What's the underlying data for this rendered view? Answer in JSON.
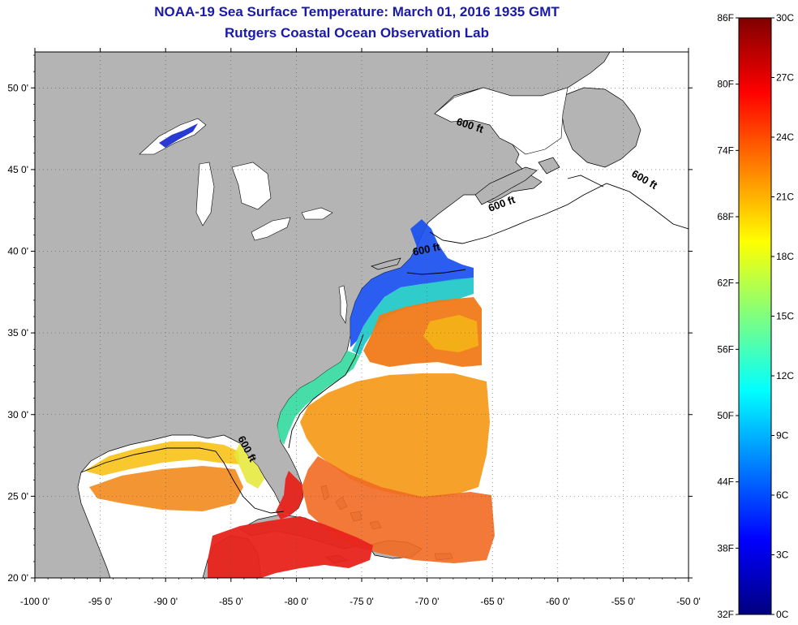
{
  "title_line1": "NOAA-19 Sea Surface Temperature:  March 01, 2016 1935 GMT",
  "title_line2": "Rutgers Coastal Ocean Observation Lab",
  "map": {
    "lon_range": [
      -100,
      -50
    ],
    "lat_range": [
      20,
      52.2
    ],
    "lon_ticks": [
      {
        "value": -100,
        "label": "-100 0'"
      },
      {
        "value": -95,
        "label": "-95 0'"
      },
      {
        "value": -90,
        "label": "-90 0'"
      },
      {
        "value": -85,
        "label": "-85 0'"
      },
      {
        "value": -80,
        "label": "-80 0'"
      },
      {
        "value": -75,
        "label": "-75 0'"
      },
      {
        "value": -70,
        "label": "-70 0'"
      },
      {
        "value": -65,
        "label": "-65 0'"
      },
      {
        "value": -60,
        "label": "-60 0'"
      },
      {
        "value": -55,
        "label": "-55 0'"
      },
      {
        "value": -50,
        "label": "-50 0'"
      }
    ],
    "lat_ticks": [
      {
        "value": 50,
        "label": "50 0'"
      },
      {
        "value": 45,
        "label": "45 0'"
      },
      {
        "value": 40,
        "label": "40 0'"
      },
      {
        "value": 35,
        "label": "35 0'"
      },
      {
        "value": 30,
        "label": "30 0'"
      },
      {
        "value": 25,
        "label": "25 0'"
      },
      {
        "value": 20,
        "label": "20 0'"
      }
    ],
    "grid": "dotted",
    "land_color": "#b4b4b4",
    "lake_color": "#ffffff",
    "depth_contour_labels": [
      {
        "text": "600 ft",
        "lon": -66.8,
        "lat": 47.5,
        "angle": 18
      },
      {
        "text": "600 ft",
        "lon": -53.5,
        "lat": 44.2,
        "angle": 30
      },
      {
        "text": "600 ft",
        "lon": -64.2,
        "lat": 42.7,
        "angle": -20
      },
      {
        "text": "600 ft",
        "lon": -70.0,
        "lat": 39.9,
        "angle": -12
      },
      {
        "text": "600 ft",
        "lon": -84.0,
        "lat": 27.8,
        "angle": 62
      }
    ]
  },
  "colorbar": {
    "f_labels": [
      "86F",
      "80F",
      "74F",
      "68F",
      "62F",
      "56F",
      "50F",
      "44F",
      "38F",
      "32F"
    ],
    "c_labels": [
      "30C",
      "27C",
      "24C",
      "21C",
      "18C",
      "15C",
      "12C",
      "9C",
      "6C",
      "3C",
      "0C"
    ],
    "range_c": [
      0,
      30
    ],
    "colors": [
      "#00007f",
      "#0000ff",
      "#007fff",
      "#00ffff",
      "#7fff7f",
      "#ffff00",
      "#ff7f00",
      "#ff0000",
      "#7f0000"
    ]
  }
}
